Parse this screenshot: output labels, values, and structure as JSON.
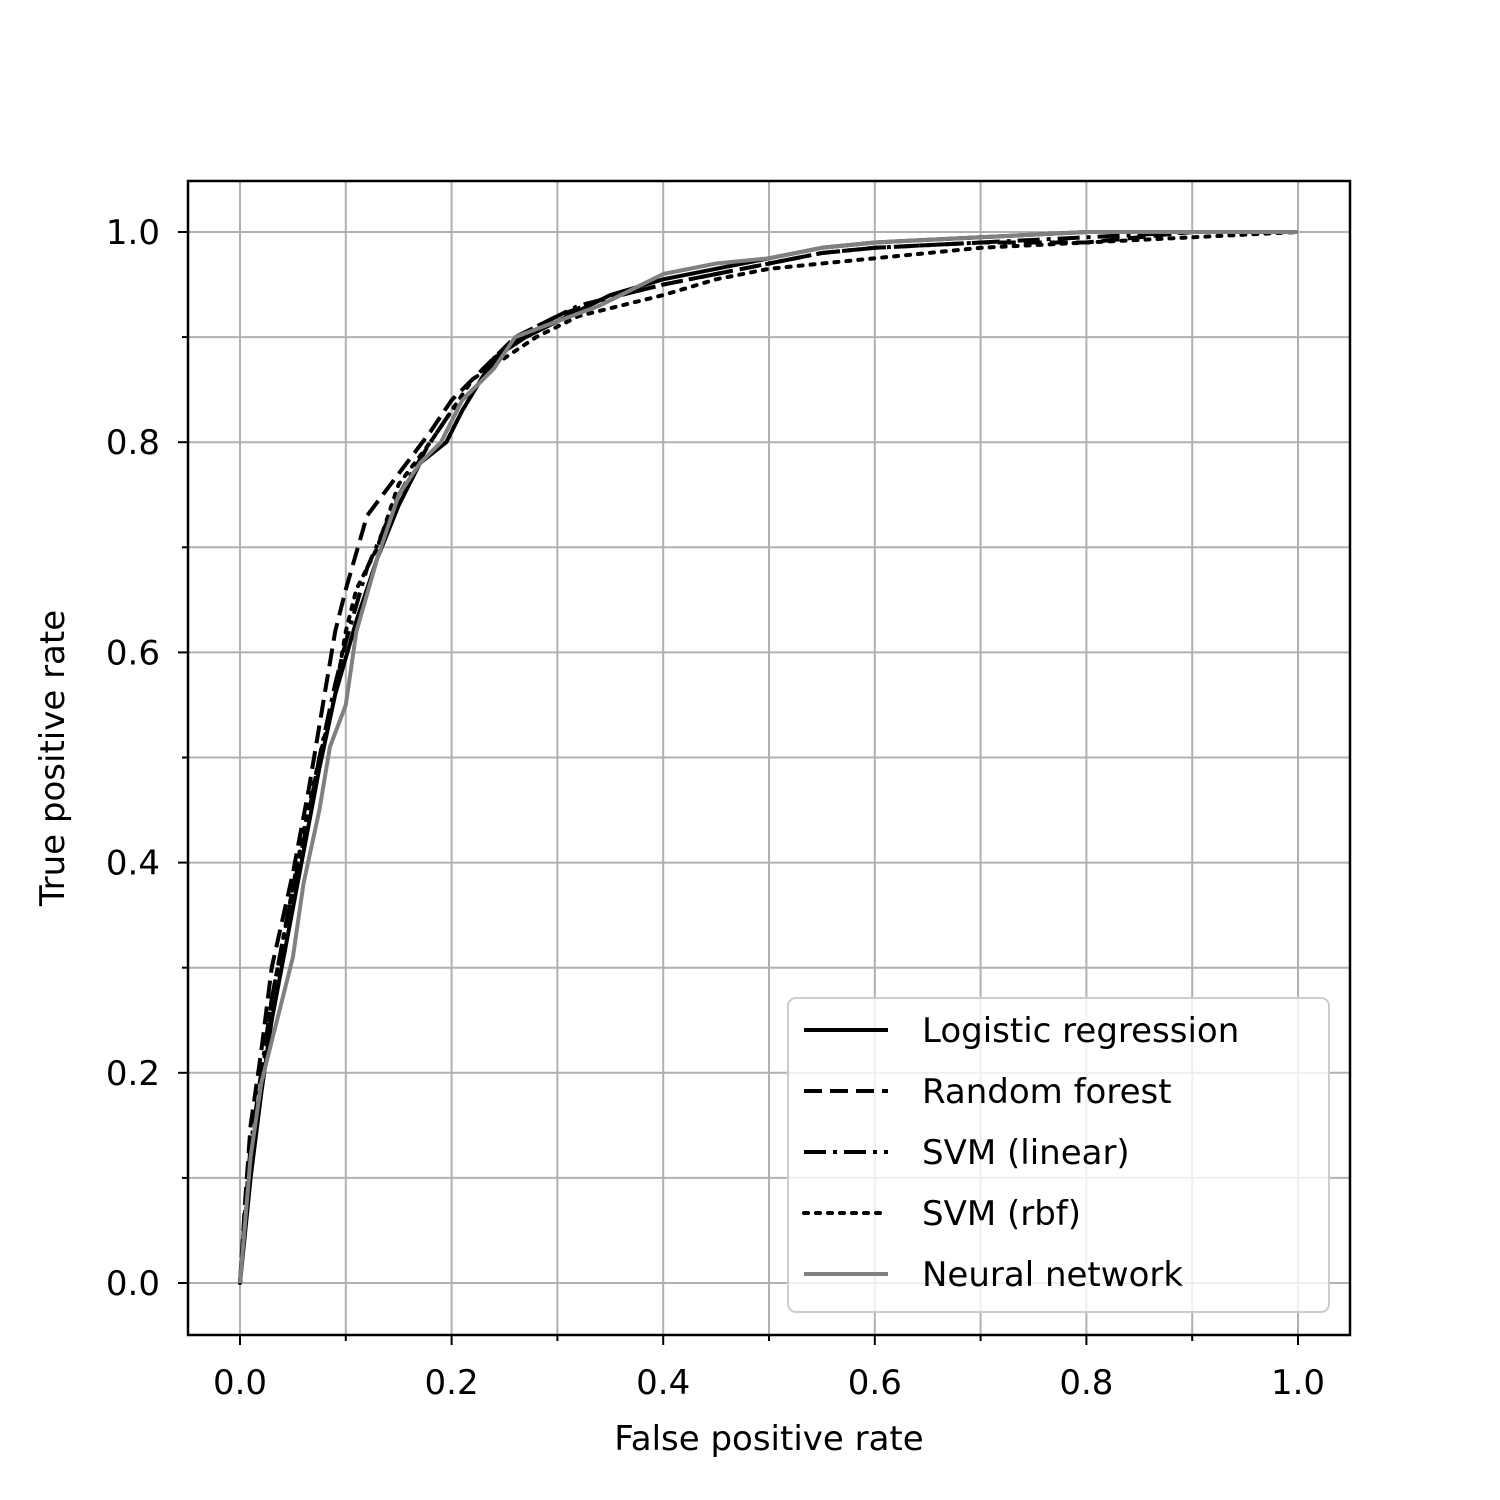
{
  "chart_data": {
    "type": "line",
    "xlabel": "False positive rate",
    "ylabel": "True positive rate",
    "xlim": [
      -0.05,
      1.05
    ],
    "ylim": [
      -0.05,
      1.05
    ],
    "xticks": [
      "0.0",
      "0.2",
      "0.4",
      "0.6",
      "0.8",
      "1.0"
    ],
    "yticks": [
      "0.0",
      "0.2",
      "0.4",
      "0.6",
      "0.8",
      "1.0"
    ],
    "minor_ticks": true,
    "grid": true,
    "legend_position": "lower-right",
    "series": [
      {
        "name": "Logistic regression",
        "color": "#000000",
        "style": "solid",
        "points": [
          [
            0,
            0
          ],
          [
            0.005,
            0.05
          ],
          [
            0.01,
            0.1
          ],
          [
            0.02,
            0.18
          ],
          [
            0.03,
            0.25
          ],
          [
            0.045,
            0.33
          ],
          [
            0.06,
            0.41
          ],
          [
            0.075,
            0.49
          ],
          [
            0.09,
            0.56
          ],
          [
            0.11,
            0.63
          ],
          [
            0.13,
            0.69
          ],
          [
            0.15,
            0.74
          ],
          [
            0.17,
            0.78
          ],
          [
            0.195,
            0.8
          ],
          [
            0.21,
            0.83
          ],
          [
            0.24,
            0.88
          ],
          [
            0.27,
            0.9
          ],
          [
            0.31,
            0.92
          ],
          [
            0.35,
            0.94
          ],
          [
            0.4,
            0.955
          ],
          [
            0.45,
            0.965
          ],
          [
            0.5,
            0.975
          ],
          [
            0.55,
            0.985
          ],
          [
            0.6,
            0.99
          ],
          [
            0.7,
            0.995
          ],
          [
            0.8,
            1.0
          ],
          [
            0.9,
            1.0
          ],
          [
            1.0,
            1.0
          ]
        ]
      },
      {
        "name": "Random forest",
        "color": "#000000",
        "style": "dashed",
        "points": [
          [
            0,
            0
          ],
          [
            0.005,
            0.08
          ],
          [
            0.01,
            0.15
          ],
          [
            0.02,
            0.22
          ],
          [
            0.03,
            0.3
          ],
          [
            0.05,
            0.39
          ],
          [
            0.065,
            0.47
          ],
          [
            0.08,
            0.56
          ],
          [
            0.09,
            0.62
          ],
          [
            0.1,
            0.66
          ],
          [
            0.12,
            0.73
          ],
          [
            0.15,
            0.77
          ],
          [
            0.18,
            0.81
          ],
          [
            0.2,
            0.84
          ],
          [
            0.23,
            0.87
          ],
          [
            0.26,
            0.9
          ],
          [
            0.3,
            0.92
          ],
          [
            0.34,
            0.935
          ],
          [
            0.4,
            0.95
          ],
          [
            0.45,
            0.96
          ],
          [
            0.5,
            0.97
          ],
          [
            0.55,
            0.98
          ],
          [
            0.6,
            0.985
          ],
          [
            0.7,
            0.99
          ],
          [
            0.8,
            0.99
          ],
          [
            0.9,
            1.0
          ],
          [
            1.0,
            1.0
          ]
        ]
      },
      {
        "name": "SVM (linear)",
        "color": "#000000",
        "style": "dashdot",
        "points": [
          [
            0,
            0
          ],
          [
            0.005,
            0.07
          ],
          [
            0.01,
            0.13
          ],
          [
            0.02,
            0.2
          ],
          [
            0.03,
            0.27
          ],
          [
            0.045,
            0.35
          ],
          [
            0.06,
            0.42
          ],
          [
            0.075,
            0.5
          ],
          [
            0.09,
            0.57
          ],
          [
            0.1,
            0.61
          ],
          [
            0.12,
            0.68
          ],
          [
            0.15,
            0.75
          ],
          [
            0.18,
            0.8
          ],
          [
            0.2,
            0.83
          ],
          [
            0.23,
            0.86
          ],
          [
            0.25,
            0.89
          ],
          [
            0.28,
            0.91
          ],
          [
            0.32,
            0.93
          ],
          [
            0.36,
            0.94
          ],
          [
            0.4,
            0.95
          ],
          [
            0.45,
            0.96
          ],
          [
            0.5,
            0.97
          ],
          [
            0.55,
            0.98
          ],
          [
            0.6,
            0.985
          ],
          [
            0.7,
            0.99
          ],
          [
            0.8,
            0.995
          ],
          [
            0.9,
            1.0
          ],
          [
            1.0,
            1.0
          ]
        ]
      },
      {
        "name": "SVM (rbf)",
        "color": "#000000",
        "style": "dotted",
        "points": [
          [
            0,
            0
          ],
          [
            0.005,
            0.06
          ],
          [
            0.01,
            0.12
          ],
          [
            0.02,
            0.19
          ],
          [
            0.03,
            0.27
          ],
          [
            0.045,
            0.35
          ],
          [
            0.06,
            0.43
          ],
          [
            0.075,
            0.5
          ],
          [
            0.09,
            0.56
          ],
          [
            0.1,
            0.62
          ],
          [
            0.11,
            0.66
          ],
          [
            0.13,
            0.7
          ],
          [
            0.15,
            0.76
          ],
          [
            0.18,
            0.8
          ],
          [
            0.2,
            0.83
          ],
          [
            0.22,
            0.86
          ],
          [
            0.25,
            0.88
          ],
          [
            0.28,
            0.9
          ],
          [
            0.32,
            0.92
          ],
          [
            0.36,
            0.93
          ],
          [
            0.4,
            0.94
          ],
          [
            0.45,
            0.955
          ],
          [
            0.5,
            0.965
          ],
          [
            0.55,
            0.97
          ],
          [
            0.6,
            0.975
          ],
          [
            0.7,
            0.985
          ],
          [
            0.8,
            0.99
          ],
          [
            0.9,
            0.995
          ],
          [
            1.0,
            1.0
          ]
        ]
      },
      {
        "name": "Neural network",
        "color": "#808080",
        "style": "solid",
        "points": [
          [
            0,
            0
          ],
          [
            0.005,
            0.06
          ],
          [
            0.01,
            0.12
          ],
          [
            0.02,
            0.19
          ],
          [
            0.035,
            0.25
          ],
          [
            0.05,
            0.31
          ],
          [
            0.06,
            0.38
          ],
          [
            0.075,
            0.45
          ],
          [
            0.085,
            0.51
          ],
          [
            0.1,
            0.55
          ],
          [
            0.11,
            0.62
          ],
          [
            0.13,
            0.69
          ],
          [
            0.15,
            0.75
          ],
          [
            0.17,
            0.78
          ],
          [
            0.19,
            0.8
          ],
          [
            0.21,
            0.84
          ],
          [
            0.24,
            0.87
          ],
          [
            0.26,
            0.9
          ],
          [
            0.3,
            0.915
          ],
          [
            0.34,
            0.93
          ],
          [
            0.4,
            0.96
          ],
          [
            0.45,
            0.97
          ],
          [
            0.5,
            0.975
          ],
          [
            0.55,
            0.985
          ],
          [
            0.6,
            0.99
          ],
          [
            0.7,
            0.995
          ],
          [
            0.8,
            1.0
          ],
          [
            0.9,
            1.0
          ],
          [
            1.0,
            1.0
          ]
        ]
      }
    ]
  }
}
